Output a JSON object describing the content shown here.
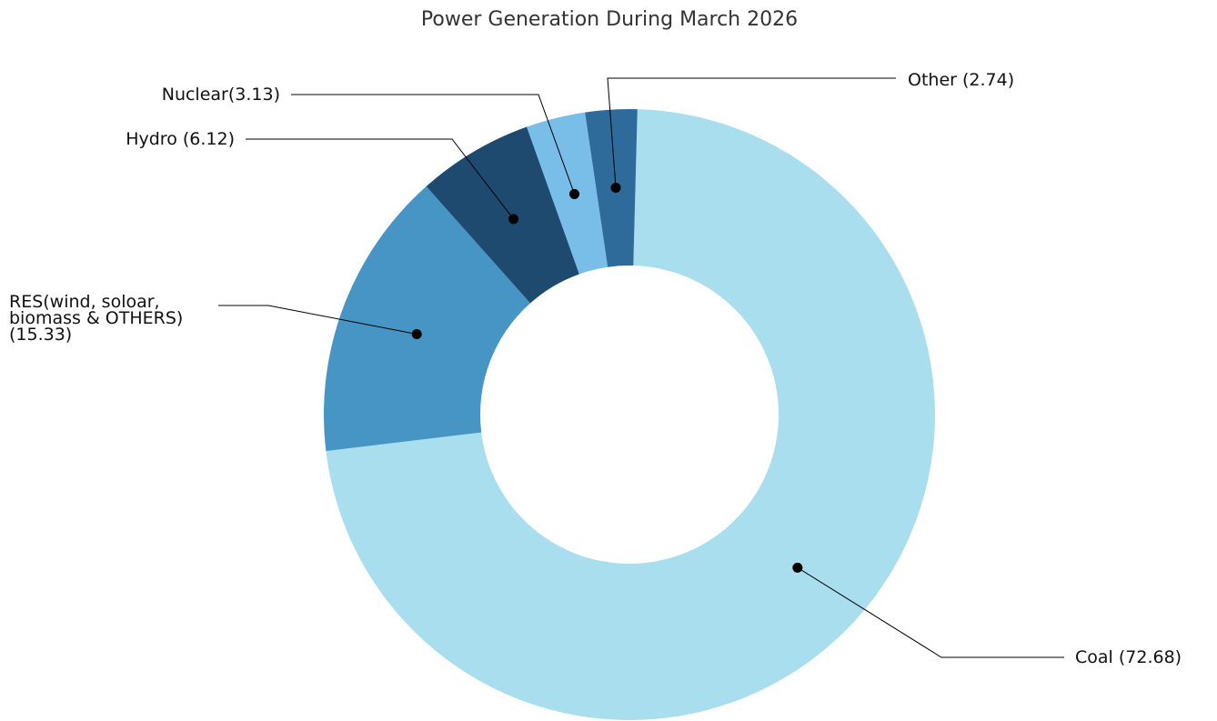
{
  "chart_data": {
    "type": "donut",
    "title": "Power Generation During March 2026",
    "categories": [
      [
        "Coal (72.68)"
      ],
      [
        "RES(wind, soloar,",
        "biomass & OTHERS)",
        "(15.33)"
      ],
      [
        "Hydro (6.12)"
      ],
      [
        "Nuclear(3.13)"
      ],
      [
        "Other (2.74)"
      ]
    ],
    "values": [
      72.68,
      15.33,
      6.12,
      3.13,
      2.74
    ],
    "colors": [
      "#a8deed",
      "#4795c4",
      "#1f4a70",
      "#78bee8",
      "#2e6b9a"
    ]
  }
}
